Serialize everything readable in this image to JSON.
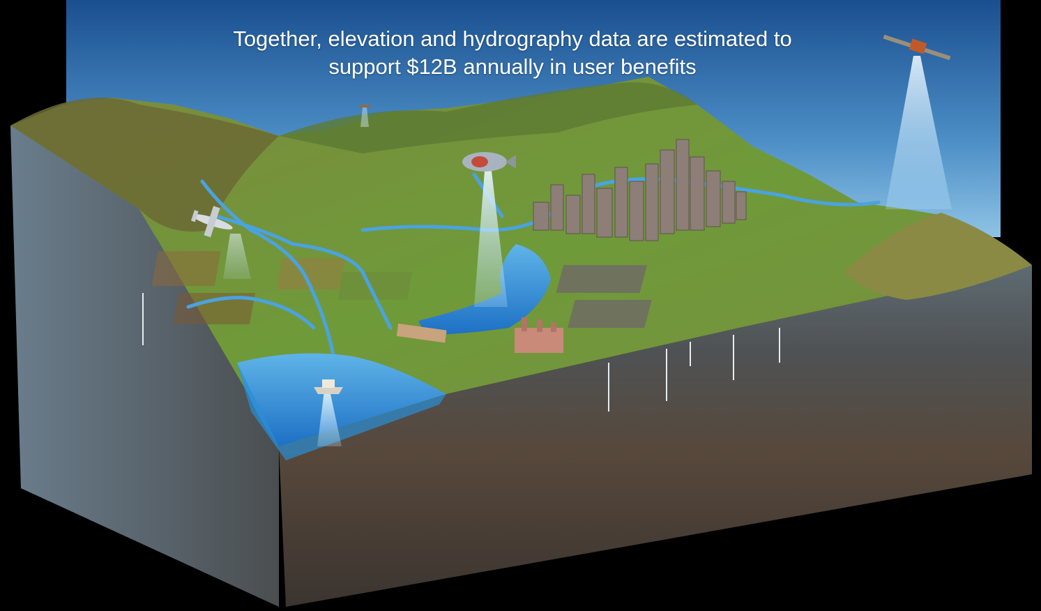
{
  "caption": {
    "line1": "Together, elevation and hydrography data are estimated to",
    "line2": "support $12B annually in user benefits"
  },
  "colors": {
    "background": "#000000",
    "sky_top": "#1a4f8f",
    "sky_bottom": "#7fb8de",
    "terrain": "#6f8d3a",
    "water": "#3f8fd0",
    "subsurface": "#55514a"
  },
  "scene_objects": [
    "satellite-icon",
    "airship-icon",
    "airplane-icon",
    "drone-icon",
    "boat-icon",
    "dam",
    "factory",
    "city-skyline",
    "river-network",
    "reservoir",
    "monitoring-wells"
  ]
}
